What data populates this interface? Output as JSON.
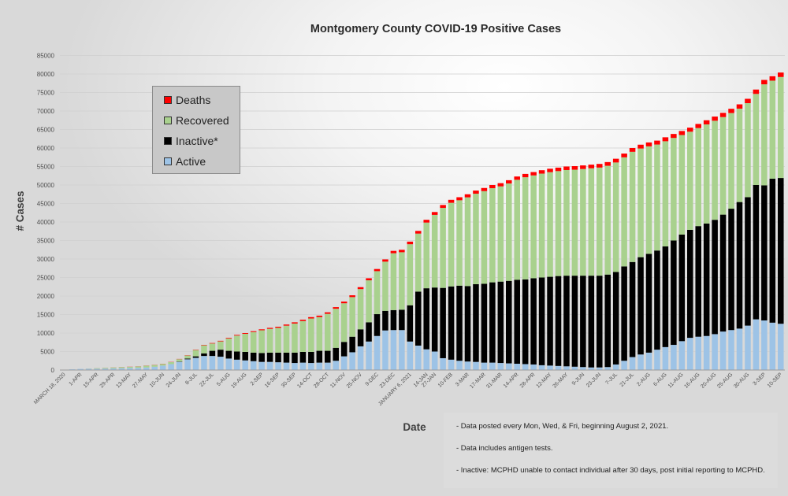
{
  "chart_data": {
    "type": "bar",
    "stacked": true,
    "title": "Montgomery County COVID-19 Positive Cases",
    "xlabel": "Date",
    "ylabel": "# Cases",
    "ylim": [
      0,
      85000
    ],
    "yticks": [
      0,
      5000,
      10000,
      15000,
      20000,
      25000,
      30000,
      35000,
      40000,
      45000,
      50000,
      55000,
      60000,
      65000,
      70000,
      75000,
      80000,
      85000
    ],
    "grid": true,
    "legend_position": "top-left",
    "x_tick_labels": [
      "MARCH 18, 2020",
      "1-APR",
      "15-APR",
      "29-APR",
      "13-MAY",
      "27-MAY",
      "10-JUN",
      "24-JUN",
      "8-JUL",
      "22-JUL",
      "5-AUG",
      "19-AUG",
      "2-SEP",
      "16-SEP",
      "30-SEP",
      "14-OCT",
      "28-OCT",
      "11-NOV",
      "25-NOV",
      "9-DEC",
      "23-DEC",
      "JANUARY 6, 2021",
      "14-JAN",
      "27-JAN",
      "10-FEB",
      "3-MAR",
      "17-MAR",
      "31-MAR",
      "14-APR",
      "28-APR",
      "12-MAY",
      "26-MAY",
      "9-JUN",
      "23-JUN",
      "7-JUL",
      "21-JUL",
      "2-AUG",
      "6-AUG",
      "11-AUG",
      "16-AUG",
      "20-AUG",
      "25-AUG",
      "30-AUG",
      "3-SEP",
      "10-SEP"
    ],
    "legend": [
      {
        "name": "Deaths",
        "color": "#ff0000"
      },
      {
        "name": "Recovered",
        "color": "#a9d18e"
      },
      {
        "name": "Inactive*",
        "color": "#000000"
      },
      {
        "name": "Active",
        "color": "#9dc3e6"
      }
    ],
    "series_order_bottom_to_top": [
      "Active",
      "Inactive*",
      "Recovered",
      "Deaths"
    ],
    "totals": [
      100,
      200,
      300,
      400,
      500,
      600,
      700,
      800,
      900,
      1000,
      1200,
      1400,
      1700,
      2200,
      3000,
      4000,
      5500,
      6800,
      7300,
      7900,
      8700,
      9500,
      10000,
      10500,
      11000,
      11400,
      11700,
      12300,
      12900,
      13600,
      14300,
      14700,
      15600,
      17000,
      18500,
      20200,
      22400,
      24800,
      27300,
      29900,
      32200,
      32500,
      34700,
      37600,
      40600,
      42700,
      44600,
      46000,
      46700,
      47500,
      48500,
      49200,
      50000,
      50500,
      51300,
      52300,
      53000,
      53500,
      54000,
      54400,
      54700,
      55000,
      55100,
      55300,
      55500,
      55700,
      56200,
      57100,
      58500,
      60000,
      60900,
      61500,
      62000,
      62900,
      63800,
      64600,
      65500,
      66500,
      67500,
      68500,
      69500,
      70600,
      71800,
      73300,
      75800,
      78400,
      79400,
      80400
    ],
    "active": [
      100,
      200,
      300,
      350,
      350,
      400,
      450,
      500,
      550,
      600,
      700,
      900,
      1200,
      1600,
      2200,
      2900,
      3300,
      3800,
      3800,
      3600,
      3100,
      2800,
      2600,
      2400,
      2200,
      2200,
      2100,
      2000,
      1900,
      2000,
      1900,
      2000,
      2000,
      2500,
      3700,
      4800,
      6400,
      7700,
      9200,
      10700,
      10800,
      10800,
      7700,
      6600,
      5600,
      5000,
      3200,
      2800,
      2500,
      2300,
      2200,
      2000,
      2000,
      1900,
      1800,
      1700,
      1600,
      1500,
      1300,
      1200,
      1100,
      1000,
      900,
      800,
      700,
      700,
      800,
      1500,
      2500,
      3500,
      4200,
      4700,
      5500,
      6200,
      6800,
      7800,
      8700,
      9000,
      9200,
      9700,
      10400,
      10800,
      11200,
      12000,
      13700,
      13400,
      12800,
      12500
    ],
    "inactive": [
      0,
      0,
      0,
      0,
      0,
      0,
      0,
      0,
      0,
      0,
      0,
      0,
      0,
      0,
      100,
      200,
      400,
      700,
      1400,
      1900,
      2100,
      2200,
      2300,
      2300,
      2400,
      2500,
      2600,
      2700,
      2800,
      2900,
      3000,
      3200,
      3200,
      3500,
      3900,
      4200,
      4600,
      5200,
      5900,
      5300,
      5400,
      5500,
      9800,
      14600,
      16500,
      17300,
      19000,
      19800,
      20300,
      20400,
      21000,
      21300,
      21700,
      22000,
      22300,
      22700,
      22900,
      23300,
      23700,
      24000,
      24300,
      24500,
      24600,
      24700,
      24800,
      24800,
      25000,
      25000,
      25500,
      25700,
      26300,
      26700,
      26800,
      27200,
      28200,
      28800,
      29200,
      29900,
      30400,
      30900,
      31600,
      32800,
      34200,
      34700,
      36300,
      36500,
      38900,
      39400
    ],
    "deaths": [
      0,
      0,
      0,
      5,
      10,
      15,
      20,
      25,
      30,
      30,
      35,
      40,
      45,
      50,
      60,
      70,
      90,
      110,
      130,
      150,
      170,
      190,
      210,
      230,
      250,
      270,
      290,
      310,
      330,
      350,
      370,
      390,
      410,
      430,
      460,
      490,
      520,
      550,
      580,
      610,
      640,
      670,
      700,
      730,
      750,
      770,
      790,
      810,
      820,
      830,
      840,
      850,
      860,
      870,
      880,
      890,
      900,
      910,
      920,
      930,
      940,
      950,
      960,
      970,
      980,
      990,
      1000,
      1010,
      1020,
      1030,
      1040,
      1050,
      1060,
      1070,
      1080,
      1090,
      1100,
      1110,
      1120,
      1130,
      1140,
      1150,
      1160,
      1170,
      1180,
      1190,
      1200,
      1210
    ]
  },
  "notes": [
    "- Data posted every Mon, Wed, & Fri, beginning August 2, 2021.",
    "- Data includes antigen tests.",
    "- Inactive: MCPHD unable to contact individual after 30 days, post initial reporting to MCPHD."
  ]
}
